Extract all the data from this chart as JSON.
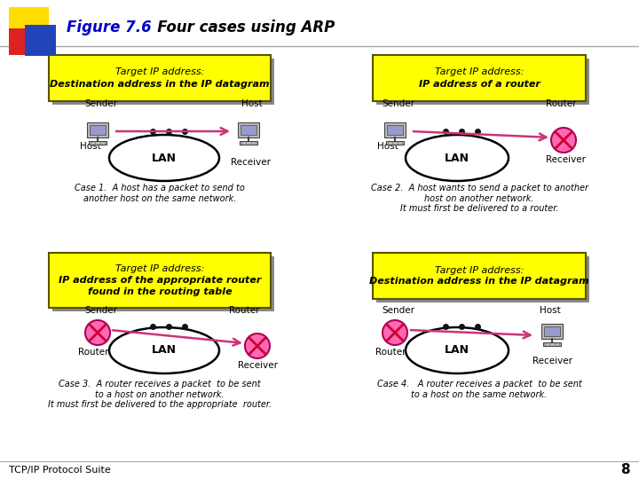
{
  "title_bold": "Figure 7.6",
  "title_italic": "    Four cases using ARP",
  "bg_color": "#ffffff",
  "yellow": "#ffff00",
  "yellow_border": "#555500",
  "pink": "#ff69b4",
  "pink_border": "#aa0055",
  "arrow_color": "#cc3377",
  "footer_text": "TCP/IP Protocol Suite",
  "page_number": "8",
  "case1_box": [
    "Target IP address:",
    "Destination address in the IP datagram"
  ],
  "case2_box": [
    "Target IP address:",
    "IP address of a router"
  ],
  "case3_box": [
    "Target IP address:",
    "IP address of the appropriate router",
    "found in the routing table"
  ],
  "case4_box": [
    "Target IP address:",
    "Destination address in the IP datagram"
  ],
  "case1_cap": "Case 1.  A host has a packet to send to\nanother host on the same network.",
  "case2_cap": "Case 2.  A host wants to send a packet to another\nhost on another network.\nIt must first be delivered to a router.",
  "case3_cap": "Case 3.  A router receives a packet  to be sent\nto a host on another network.\nIt must first be delivered to the appropriate  router.",
  "case4_cap": "Case 4.   A router receives a packet  to be sent\nto a host on the same network."
}
